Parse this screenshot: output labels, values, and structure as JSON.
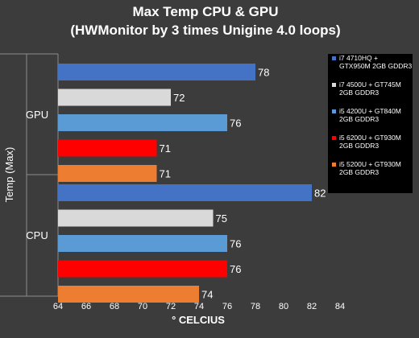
{
  "chart_data": {
    "type": "bar",
    "orientation": "horizontal",
    "title": "Max Temp CPU & GPU",
    "subtitle": "(HWMonitor by 3 times Unigine 4.0 loops)",
    "xlabel": "° CELCIUS",
    "ylabel": "Temp (Max)",
    "xlim": [
      64,
      84
    ],
    "xticks": [
      "64",
      "66",
      "68",
      "70",
      "72",
      "74",
      "76",
      "78",
      "80",
      "82",
      "84"
    ],
    "grid": false,
    "legend_position": "right",
    "categories": [
      "GPU",
      "CPU"
    ],
    "series": [
      {
        "name_lines": [
          "i7 4710HQ +",
          "GTX950M 2GB GDDR3"
        ],
        "color": "#4472c4",
        "values": [
          78,
          82
        ]
      },
      {
        "name_lines": [
          "i7 4500U + GT745M",
          "2GB GDDR3"
        ],
        "color": "#d9d9d9",
        "values": [
          72,
          75
        ]
      },
      {
        "name_lines": [
          "i5 4200U + GT840M",
          "2GB GDDR3"
        ],
        "color": "#5b9bd5",
        "values": [
          76,
          76
        ]
      },
      {
        "name_lines": [
          "i5 6200U + GT930M",
          "2GB GDDR3"
        ],
        "color": "#ff0000",
        "values": [
          71,
          76
        ]
      },
      {
        "name_lines": [
          "i5 5200U + GT930M",
          "2GB GDDR3"
        ],
        "color": "#ed7d31",
        "values": [
          71,
          74
        ]
      }
    ]
  }
}
